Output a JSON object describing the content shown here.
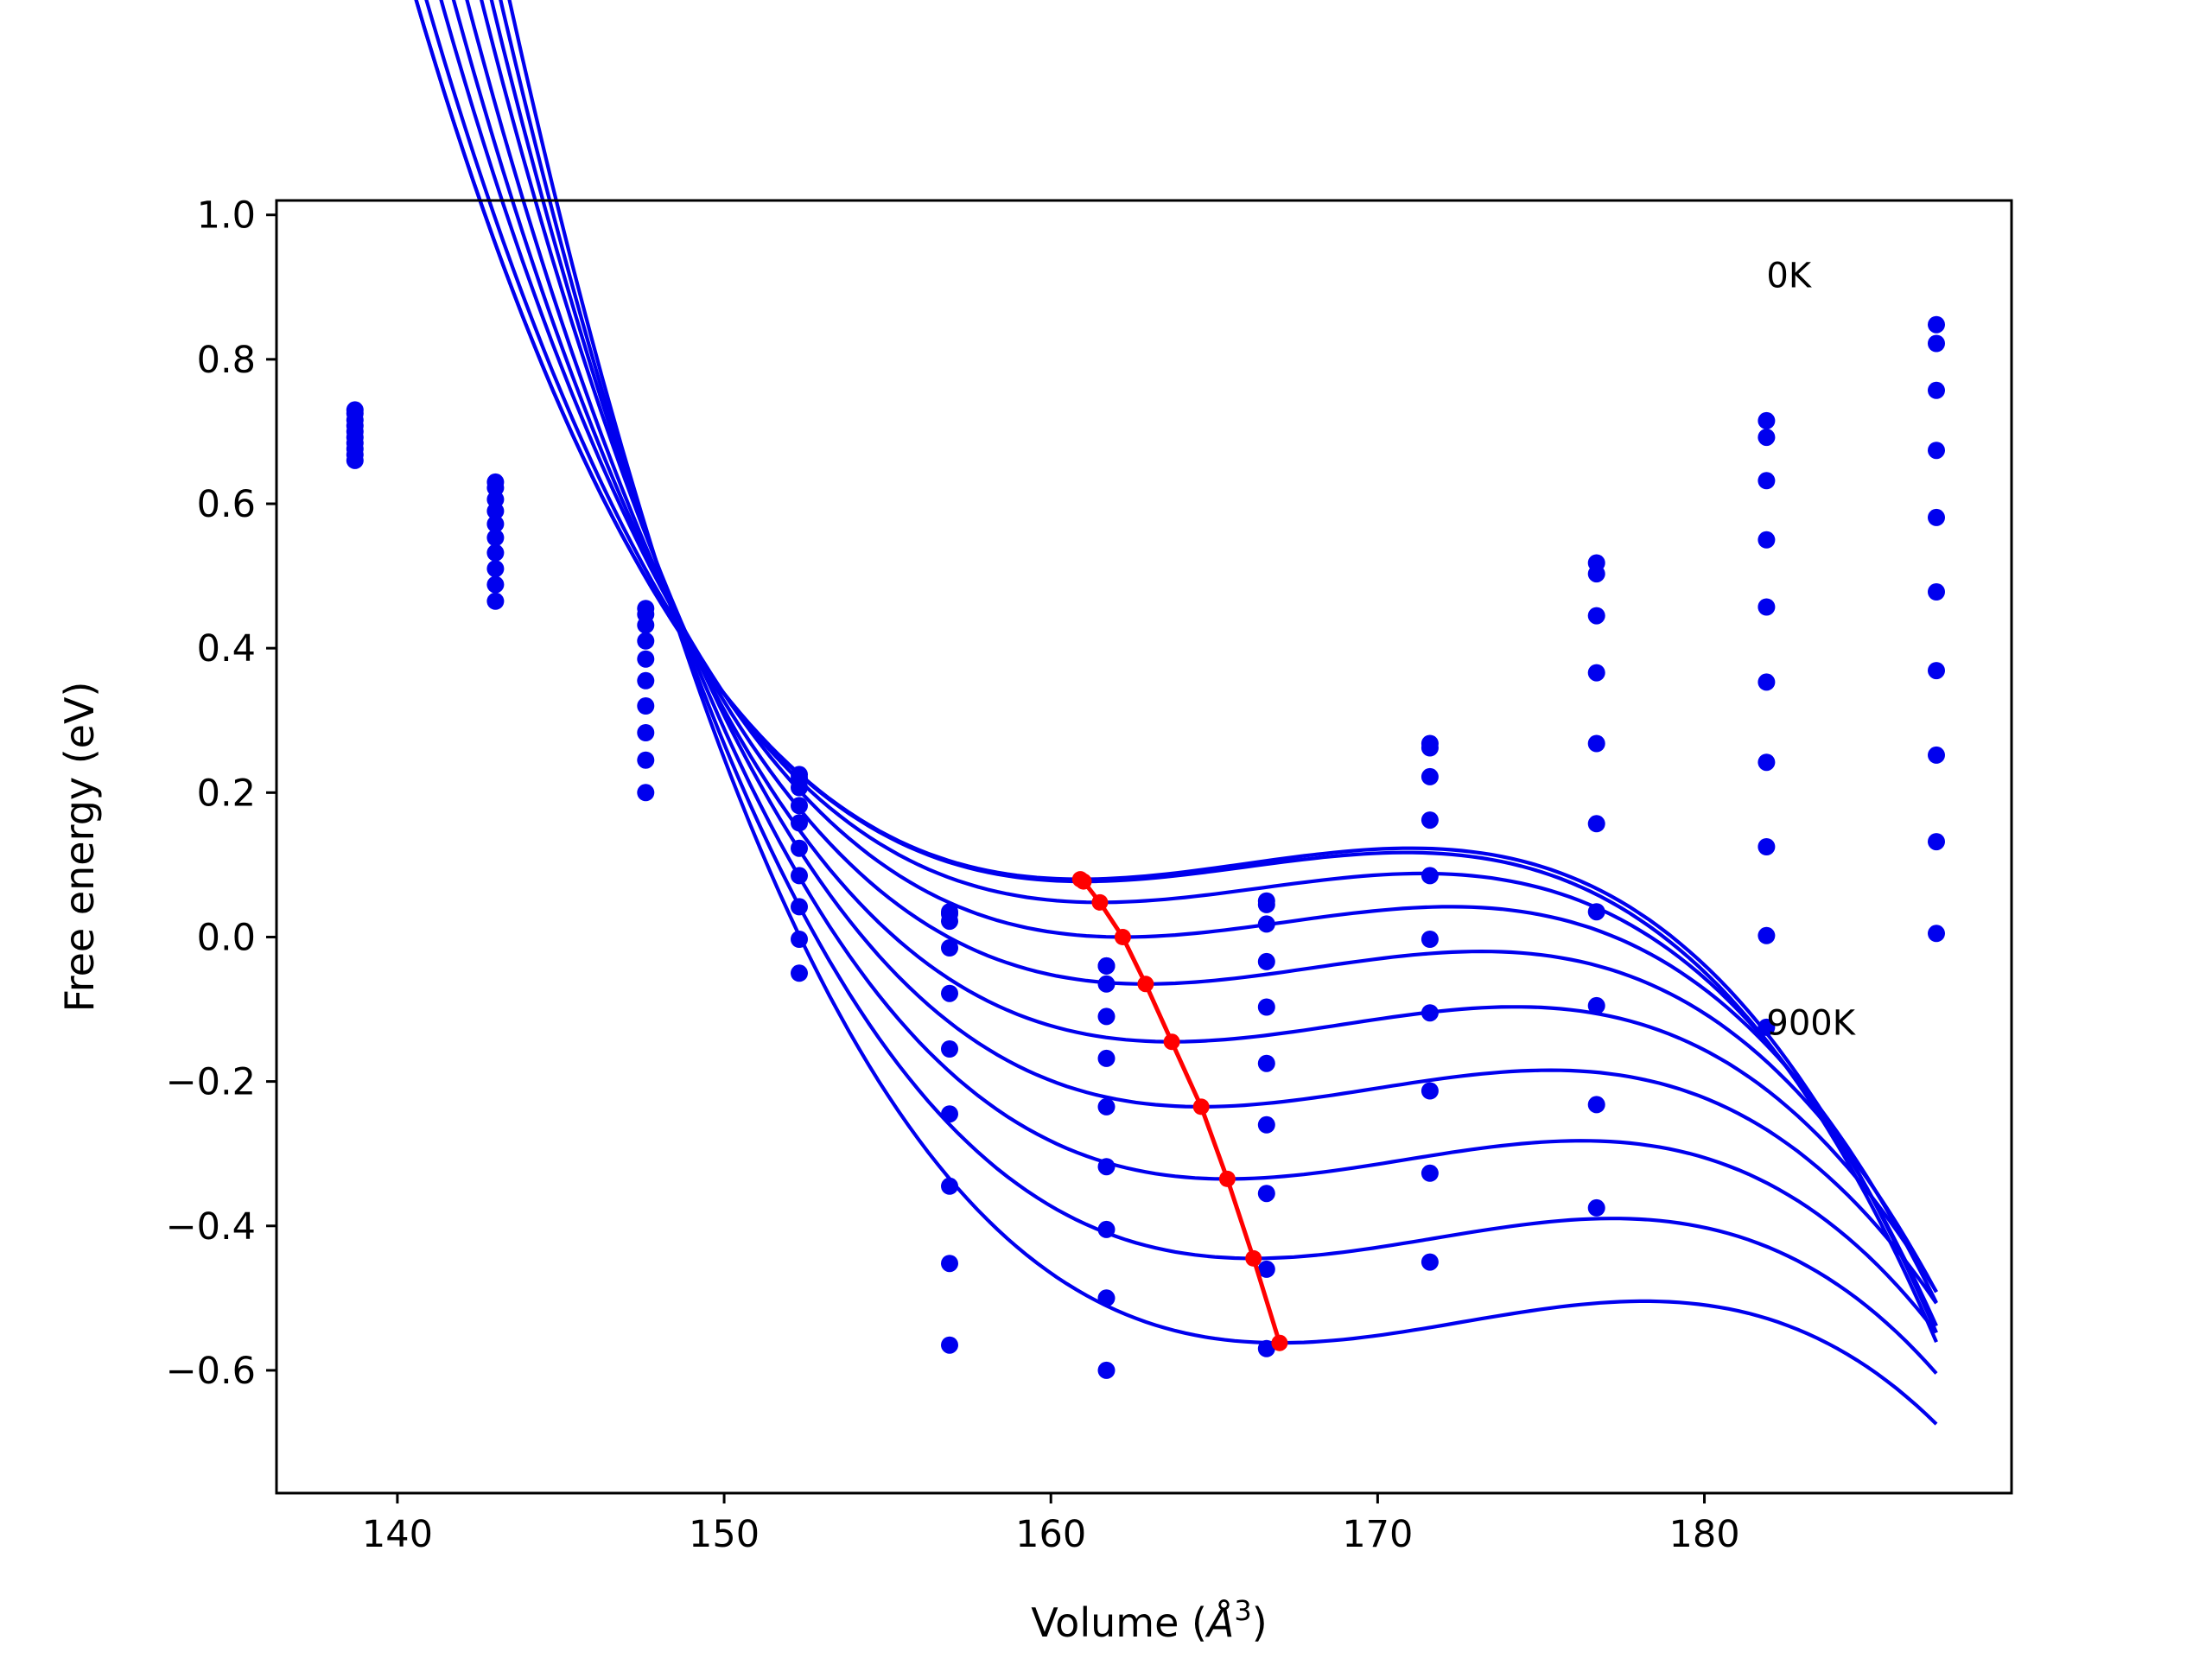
{
  "chart_data": {
    "type": "scatter",
    "xlabel": "Volume (Å3)",
    "xlabel_parts": {
      "main": "Volume (",
      "sym": "Å",
      "sup": "3",
      "close": ")"
    },
    "ylabel": "Free energy (eV)",
    "xlim": [
      136.3,
      189.4
    ],
    "ylim": [
      -0.77,
      1.02
    ],
    "xticks": [
      140,
      150,
      160,
      170,
      180
    ],
    "yticks": [
      1.0,
      0.8,
      0.6,
      0.4,
      0.2,
      0.0,
      -0.2,
      -0.4,
      -0.6
    ],
    "ytick_labels": [
      "1.0",
      "0.8",
      "0.6",
      "0.4",
      "0.2",
      "0.0",
      "−0.2",
      "−0.4",
      "−0.6"
    ],
    "grid": false,
    "legend": "none",
    "annotations": [
      {
        "text": "0K",
        "x": 181.9,
        "y": 0.9
      },
      {
        "text": "900K",
        "x": 181.9,
        "y": -0.135
      }
    ],
    "colors": {
      "points": "#0000ee",
      "fits": "#0000ee",
      "minima": "#ff0000"
    },
    "volumes": [
      138.7,
      143.0,
      147.6,
      152.3,
      156.9,
      161.7,
      166.6,
      171.6,
      176.7,
      181.9,
      187.1
    ],
    "series": [
      {
        "temperature": 0,
        "values": [
          0.73,
          0.63,
          0.455,
          0.225,
          0.035,
          -0.04,
          0.05,
          0.268,
          0.518,
          0.715,
          0.848
        ]
      },
      {
        "temperature": 100,
        "values": [
          0.725,
          0.622,
          0.447,
          0.22,
          0.032,
          -0.04,
          0.045,
          0.262,
          0.503,
          0.692,
          0.822
        ]
      },
      {
        "temperature": 200,
        "values": [
          0.716,
          0.606,
          0.432,
          0.207,
          0.022,
          -0.065,
          0.018,
          0.222,
          0.445,
          0.632,
          0.757
        ]
      },
      {
        "temperature": 300,
        "values": [
          0.708,
          0.59,
          0.41,
          0.182,
          -0.015,
          -0.11,
          -0.034,
          0.162,
          0.366,
          0.55,
          0.674
        ]
      },
      {
        "temperature": 400,
        "values": [
          0.7,
          0.572,
          0.385,
          0.158,
          -0.078,
          -0.168,
          -0.097,
          0.085,
          0.268,
          0.457,
          0.581
        ]
      },
      {
        "temperature": 500,
        "values": [
          0.692,
          0.553,
          0.355,
          0.123,
          -0.155,
          -0.235,
          -0.175,
          -0.003,
          0.157,
          0.353,
          0.478
        ]
      },
      {
        "temperature": 600,
        "values": [
          0.684,
          0.532,
          0.32,
          0.085,
          -0.245,
          -0.318,
          -0.26,
          -0.105,
          0.035,
          0.242,
          0.369
        ]
      },
      {
        "temperature": 700,
        "values": [
          0.676,
          0.51,
          0.283,
          0.042,
          -0.345,
          -0.405,
          -0.355,
          -0.213,
          -0.095,
          0.125,
          0.252
        ]
      },
      {
        "temperature": 800,
        "values": [
          0.668,
          0.488,
          0.245,
          -0.003,
          -0.452,
          -0.5,
          -0.46,
          -0.327,
          -0.232,
          0.002,
          0.132
        ]
      },
      {
        "temperature": 900,
        "values": [
          0.66,
          0.465,
          0.2,
          -0.05,
          -0.565,
          -0.6,
          -0.57,
          -0.45,
          -0.375,
          -0.125,
          0.005
        ]
      }
    ],
    "fits": [
      {
        "temperature": 0,
        "v0": 160.9,
        "e0": 0.08,
        "a": 0.00126,
        "b": 8.3e-05,
        "x0": 138.7,
        "x1": 187.1
      },
      {
        "temperature": 100,
        "v0": 161.0,
        "e0": 0.077,
        "a": 0.00123,
        "b": 8.3e-05,
        "x0": 138.7,
        "x1": 187.1
      },
      {
        "temperature": 200,
        "v0": 161.5,
        "e0": 0.048,
        "a": 0.00123,
        "b": 8.3e-05,
        "x0": 138.7,
        "x1": 187.1
      },
      {
        "temperature": 300,
        "v0": 162.2,
        "e0": 0.0,
        "a": 0.00125,
        "b": 8.3e-05,
        "x0": 138.7,
        "x1": 187.1
      },
      {
        "temperature": 400,
        "v0": 162.9,
        "e0": -0.065,
        "a": 0.00128,
        "b": 8.3e-05,
        "x0": 138.7,
        "x1": 187.1
      },
      {
        "temperature": 500,
        "v0": 163.7,
        "e0": -0.145,
        "a": 0.00131,
        "b": 8.3e-05,
        "x0": 138.7,
        "x1": 187.1
      },
      {
        "temperature": 600,
        "v0": 164.6,
        "e0": -0.235,
        "a": 0.00133,
        "b": 8.3e-05,
        "x0": 138.7,
        "x1": 187.1
      },
      {
        "temperature": 700,
        "v0": 165.4,
        "e0": -0.335,
        "a": 0.00135,
        "b": 8.3e-05,
        "x0": 138.7,
        "x1": 187.1
      },
      {
        "temperature": 800,
        "v0": 166.2,
        "e0": -0.445,
        "a": 0.00137,
        "b": 8.3e-05,
        "x0": 138.7,
        "x1": 187.1
      },
      {
        "temperature": 900,
        "v0": 167.0,
        "e0": -0.562,
        "a": 0.00139,
        "b": 8.3e-05,
        "x0": 138.7,
        "x1": 187.1
      }
    ],
    "minima": [
      {
        "x": 160.9,
        "y": 0.08
      },
      {
        "x": 161.0,
        "y": 0.077
      },
      {
        "x": 161.5,
        "y": 0.048
      },
      {
        "x": 162.2,
        "y": 0.0
      },
      {
        "x": 162.9,
        "y": -0.065
      },
      {
        "x": 163.7,
        "y": -0.145
      },
      {
        "x": 164.6,
        "y": -0.235
      },
      {
        "x": 165.4,
        "y": -0.335
      },
      {
        "x": 166.2,
        "y": -0.445
      },
      {
        "x": 167.0,
        "y": -0.562
      }
    ]
  }
}
